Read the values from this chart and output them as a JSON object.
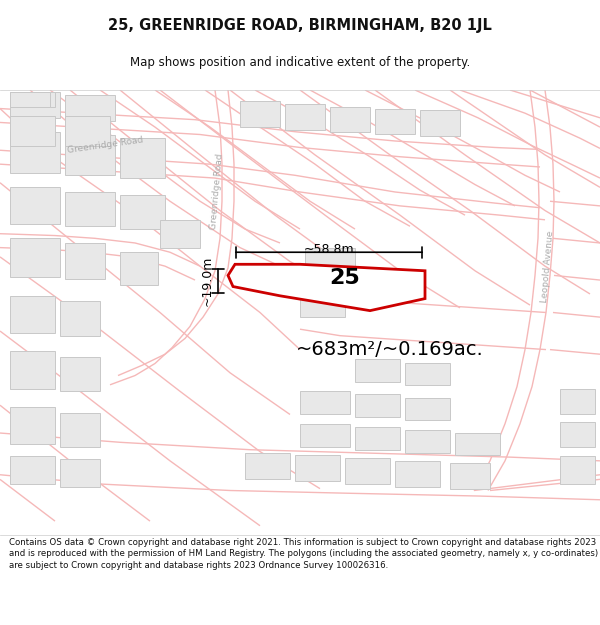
{
  "title": "25, GREENRIDGE ROAD, BIRMINGHAM, B20 1JL",
  "subtitle": "Map shows position and indicative extent of the property.",
  "area_text": "~683m²/~0.169ac.",
  "property_number": "25",
  "dim_width": "~58.8m",
  "dim_height": "~19.0m",
  "road_label_1": "Greenridge Road",
  "road_label_2": "Greenridge Road",
  "road_label_3": "Leopold Avenue",
  "footer": "Contains OS data © Crown copyright and database right 2021. This information is subject to Crown copyright and database rights 2023 and is reproduced with the permission of HM Land Registry. The polygons (including the associated geometry, namely x, y co-ordinates) are subject to Crown copyright and database rights 2023 Ordnance Survey 100026316.",
  "bg_color": "#ffffff",
  "map_bg": "#ffffff",
  "road_color": "#f5b8b8",
  "road_color2": "#f0a0a0",
  "building_fill": "#e8e8e8",
  "building_edge": "#c8c8c8",
  "property_fill": "#ffffff",
  "property_edge": "#cc0000",
  "annotation_color": "#111111",
  "title_color": "#111111",
  "road_label_color": "#aaaaaa"
}
